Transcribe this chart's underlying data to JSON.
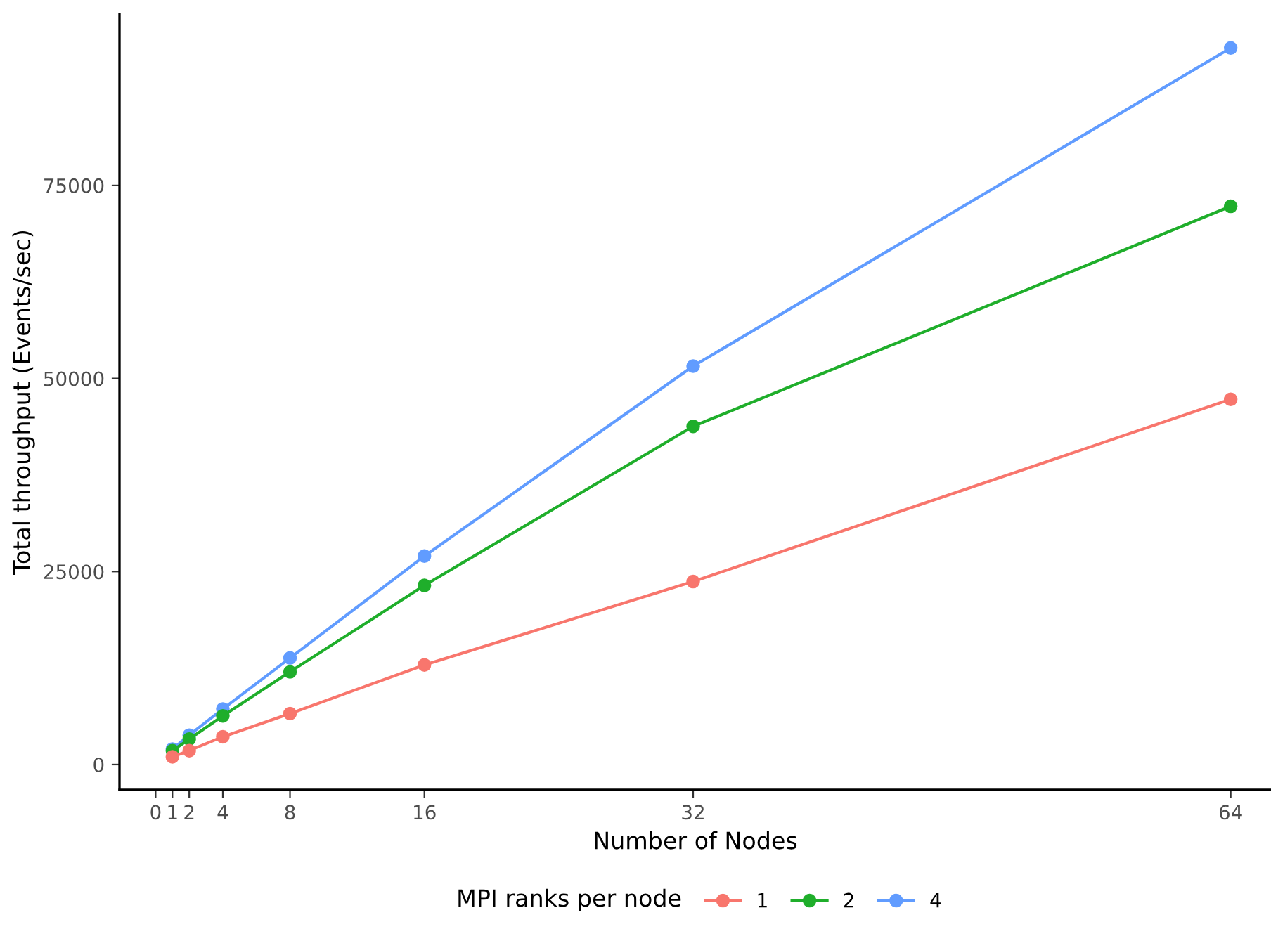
{
  "chart_data": {
    "type": "line",
    "xlabel": "Number of Nodes",
    "ylabel": "Total throughput (Events/sec)",
    "legend_title": "MPI ranks per node",
    "x": [
      1,
      2,
      4,
      8,
      16,
      32,
      64
    ],
    "series": [
      {
        "name": "1",
        "color": "#f8766d",
        "values": [
          1000,
          1800,
          3600,
          6600,
          12900,
          23700,
          47300
        ]
      },
      {
        "name": "2",
        "color": "#1fae2b",
        "values": [
          1800,
          3300,
          6300,
          12000,
          23200,
          43800,
          72300
        ]
      },
      {
        "name": "4",
        "color": "#619cff",
        "values": [
          2000,
          3800,
          7200,
          13800,
          27000,
          51600,
          92800
        ]
      }
    ],
    "xlim": [
      -2.15,
      66.4
    ],
    "ylim": [
      -3280,
      97200
    ],
    "xticks": [
      0,
      1,
      2,
      4,
      8,
      16,
      32,
      64
    ],
    "yticks": [
      0,
      25000,
      50000,
      75000
    ],
    "grid": false,
    "legend": "bottom",
    "marker": "circle",
    "line_style": "solid"
  }
}
